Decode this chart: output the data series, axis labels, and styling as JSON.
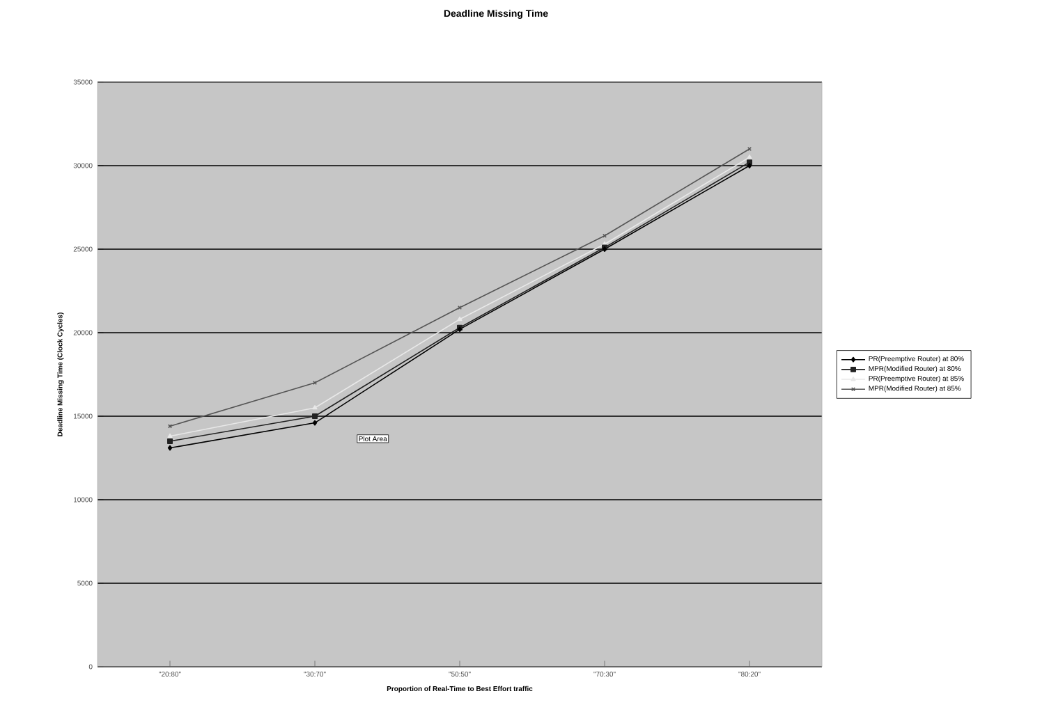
{
  "chart_data": {
    "type": "line",
    "title": "Deadline Missing Time",
    "xlabel": "Proportion of Real-Time to Best Effort traffic",
    "ylabel": "Deadline Missing Time (Clock Cycles)",
    "categories": [
      "\"20:80\"",
      "\"30:70\"",
      "\"50:50\"",
      "\"70:30\"",
      "\"80:20\""
    ],
    "series": [
      {
        "name": "PR(Preemptive Router) at 80%",
        "color": "#000000",
        "marker": "diamond",
        "values": [
          13100,
          14600,
          20200,
          25000,
          30000
        ]
      },
      {
        "name": "MPR(Modified Router) at 80%",
        "color": "#222222",
        "marker": "square",
        "values": [
          13500,
          15000,
          20300,
          25100,
          30200
        ]
      },
      {
        "name": "PR(Preemptive Router) at 85%",
        "color": "#e8e8e8",
        "marker": "triangle",
        "values": [
          13800,
          15500,
          20800,
          25300,
          30500
        ]
      },
      {
        "name": "MPR(Modified Router) at 85%",
        "color": "#555555",
        "marker": "cross",
        "values": [
          14400,
          17000,
          21500,
          25800,
          31000
        ]
      }
    ],
    "ylim": [
      0,
      35000
    ],
    "yticks": [
      0,
      5000,
      10000,
      15000,
      20000,
      25000,
      30000,
      35000
    ],
    "grid": "y",
    "legend": "right",
    "line_style": "solid",
    "annotations": [
      "Plot Area"
    ]
  }
}
